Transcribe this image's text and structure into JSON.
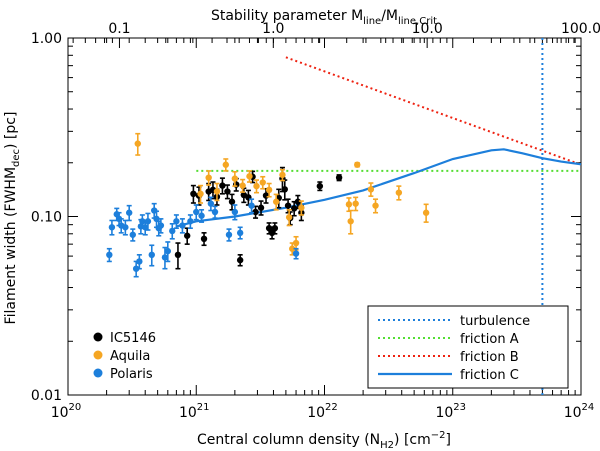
{
  "chart_data": {
    "type": "scatter",
    "x_axis": {
      "label_main": "Central column density (N",
      "label_sub": "H2",
      "label_tail": ") [cm",
      "label_sup": "−2",
      "label_end": "]",
      "scale": "log",
      "range": [
        1e+20,
        1e+24
      ],
      "ticks": [
        {
          "value": 1e+20,
          "base": "10",
          "exp": "20"
        },
        {
          "value": 1e+21,
          "base": "10",
          "exp": "21"
        },
        {
          "value": 1e+22,
          "base": "10",
          "exp": "22"
        },
        {
          "value": 1e+23,
          "base": "10",
          "exp": "23"
        },
        {
          "value": 1e+24,
          "base": "10",
          "exp": "24"
        }
      ]
    },
    "top_axis": {
      "label_main": "Stability parameter M",
      "label_sub1": "line",
      "label_slash": "/M",
      "label_sub2": "line,Crit",
      "scale": "log",
      "range": [
        0.0463,
        100.0
      ],
      "ticks": [
        {
          "value": 0.1,
          "label": "0.1"
        },
        {
          "value": 1.0,
          "label": "1.0"
        },
        {
          "value": 10.0,
          "label": "10.0"
        },
        {
          "value": 100.0,
          "label": "100.0"
        }
      ]
    },
    "y_axis": {
      "label_main": "Filament width (FWHM",
      "label_sub": "dec",
      "label_end": ") [pc]",
      "scale": "log",
      "range": [
        0.01,
        1.0
      ],
      "ticks": [
        {
          "value": 0.01,
          "label": "0.01"
        },
        {
          "value": 0.1,
          "label": "0.10"
        },
        {
          "value": 1.0,
          "label": "1.00"
        }
      ]
    },
    "series": [
      {
        "name": "IC5146",
        "color": "#000000",
        "points": [
          [
            7.2e+20,
            0.061,
            0.01
          ],
          [
            8.5e+20,
            0.078,
            0.008
          ],
          [
            9.5e+20,
            0.134,
            0.015
          ],
          [
            1.05e+21,
            0.131,
            0.015
          ],
          [
            1.15e+21,
            0.075,
            0.006
          ],
          [
            1.25e+21,
            0.138,
            0.015
          ],
          [
            1.35e+21,
            0.141,
            0.015
          ],
          [
            1.45e+21,
            0.129,
            0.013
          ],
          [
            1.6e+21,
            0.149,
            0.015
          ],
          [
            1.75e+21,
            0.138,
            0.012
          ],
          [
            1.9e+21,
            0.121,
            0.012
          ],
          [
            2.05e+21,
            0.151,
            0.012
          ],
          [
            2.2e+21,
            0.057,
            0.004
          ],
          [
            2.35e+21,
            0.132,
            0.012
          ],
          [
            2.55e+21,
            0.128,
            0.012
          ],
          [
            2.75e+21,
            0.167,
            0.012
          ],
          [
            2.9e+21,
            0.106,
            0.008
          ],
          [
            3.2e+21,
            0.112,
            0.01
          ],
          [
            3.5e+21,
            0.131,
            0.012
          ],
          [
            3.7e+21,
            0.086,
            0.006
          ],
          [
            3.9e+21,
            0.081,
            0.006
          ],
          [
            4.1e+21,
            0.086,
            0.006
          ],
          [
            4.4e+21,
            0.127,
            0.015
          ],
          [
            4.7e+21,
            0.163,
            0.025
          ],
          [
            4.9e+21,
            0.142,
            0.018
          ],
          [
            5.2e+21,
            0.115,
            0.01
          ],
          [
            5.4e+21,
            0.098,
            0.008
          ],
          [
            5.8e+21,
            0.111,
            0.01
          ],
          [
            6.2e+21,
            0.121,
            0.01
          ],
          [
            6.6e+21,
            0.105,
            0.01
          ],
          [
            9.2e+21,
            0.148,
            0.008
          ],
          [
            1.3e+22,
            0.165,
            0.006
          ]
        ]
      },
      {
        "name": "Aquila",
        "color": "#f5a623",
        "points": [
          [
            3.5e+20,
            0.256,
            0.035
          ],
          [
            1.08e+21,
            0.134,
            0.015
          ],
          [
            1.25e+21,
            0.165,
            0.015
          ],
          [
            1.45e+21,
            0.138,
            0.015
          ],
          [
            1.7e+21,
            0.195,
            0.015
          ],
          [
            2e+21,
            0.163,
            0.015
          ],
          [
            2.3e+21,
            0.149,
            0.012
          ],
          [
            2.6e+21,
            0.168,
            0.012
          ],
          [
            2.95e+21,
            0.148,
            0.012
          ],
          [
            3.3e+21,
            0.155,
            0.012
          ],
          [
            3.7e+21,
            0.141,
            0.012
          ],
          [
            4.2e+21,
            0.121,
            0.012
          ],
          [
            4.7e+21,
            0.171,
            0.012
          ],
          [
            5.3e+21,
            0.099,
            0.01
          ],
          [
            5.6e+21,
            0.066,
            0.005
          ],
          [
            6e+21,
            0.071,
            0.006
          ],
          [
            6.6e+21,
            0.112,
            0.01
          ],
          [
            1.55e+22,
            0.117,
            0.01
          ],
          [
            1.75e+22,
            0.118,
            0.01
          ],
          [
            1.6e+22,
            0.094,
            0.014
          ],
          [
            1.8e+22,
            0.195,
            0.005
          ],
          [
            2.3e+22,
            0.142,
            0.012
          ],
          [
            2.5e+22,
            0.115,
            0.01
          ],
          [
            3.8e+22,
            0.136,
            0.012
          ],
          [
            6.2e+22,
            0.105,
            0.012
          ]
        ]
      },
      {
        "name": "Polaris",
        "color": "#1d7fdb",
        "points": [
          [
            2.1e+20,
            0.061,
            0.005
          ],
          [
            2.2e+20,
            0.087,
            0.008
          ],
          [
            2.4e+20,
            0.103,
            0.008
          ],
          [
            2.5e+20,
            0.097,
            0.008
          ],
          [
            2.6e+20,
            0.089,
            0.008
          ],
          [
            2.8e+20,
            0.087,
            0.008
          ],
          [
            3e+20,
            0.105,
            0.01
          ],
          [
            3.2e+20,
            0.079,
            0.006
          ],
          [
            3.4e+20,
            0.051,
            0.005
          ],
          [
            3.6e+20,
            0.056,
            0.005
          ],
          [
            3.7e+20,
            0.088,
            0.008
          ],
          [
            3.8e+20,
            0.094,
            0.008
          ],
          [
            4e+20,
            0.087,
            0.008
          ],
          [
            4.2e+20,
            0.094,
            0.01
          ],
          [
            4.5e+20,
            0.061,
            0.008
          ],
          [
            4.7e+20,
            0.108,
            0.01
          ],
          [
            4.9e+20,
            0.097,
            0.01
          ],
          [
            5.1e+20,
            0.086,
            0.008
          ],
          [
            5.3e+20,
            0.089,
            0.008
          ],
          [
            5.7e+20,
            0.059,
            0.008
          ],
          [
            6e+20,
            0.064,
            0.008
          ],
          [
            6.5e+20,
            0.083,
            0.008
          ],
          [
            7e+20,
            0.094,
            0.008
          ],
          [
            7.8e+20,
            0.089,
            0.008
          ],
          [
            9e+20,
            0.094,
            0.008
          ],
          [
            1e+21,
            0.106,
            0.01
          ],
          [
            1.1e+21,
            0.101,
            0.008
          ],
          [
            1.3e+21,
            0.118,
            0.01
          ],
          [
            1.4e+21,
            0.106,
            0.008
          ],
          [
            1.8e+21,
            0.079,
            0.006
          ],
          [
            2e+21,
            0.106,
            0.01
          ],
          [
            2.2e+21,
            0.081,
            0.006
          ],
          [
            2.7e+21,
            0.115,
            0.01
          ],
          [
            6e+21,
            0.062,
            0.004
          ]
        ]
      }
    ],
    "lines": [
      {
        "name": "turbulence",
        "color": "#1d7fdb",
        "style": "dotted",
        "x_const": 5e+23,
        "y_range": [
          0.01,
          1.0
        ]
      },
      {
        "name": "friction A",
        "color": "#55dd33",
        "style": "dotted",
        "points": [
          [
            1e+21,
            0.18
          ],
          [
            1e+24,
            0.18
          ]
        ]
      },
      {
        "name": "friction B",
        "color": "#ee2211",
        "style": "dotted",
        "points": [
          [
            5e+21,
            0.78
          ],
          [
            1e+24,
            0.195
          ]
        ]
      },
      {
        "name": "friction C",
        "color": "#1d7fdb",
        "style": "solid",
        "points": [
          [
            7e+20,
            0.088
          ],
          [
            1e+21,
            0.094
          ],
          [
            2e+21,
            0.1
          ],
          [
            5e+21,
            0.112
          ],
          [
            1e+22,
            0.124
          ],
          [
            2e+22,
            0.14
          ],
          [
            5e+22,
            0.175
          ],
          [
            1e+23,
            0.21
          ],
          [
            2e+23,
            0.235
          ],
          [
            2.5e+23,
            0.238
          ],
          [
            3.5e+23,
            0.226
          ],
          [
            5e+23,
            0.212
          ],
          [
            7e+23,
            0.203
          ],
          [
            1e+24,
            0.196
          ]
        ]
      }
    ],
    "legend_points": [
      "IC5146",
      "Aquila",
      "Polaris"
    ],
    "legend_lines": [
      "turbulence",
      "friction A",
      "friction B",
      "friction C"
    ]
  }
}
